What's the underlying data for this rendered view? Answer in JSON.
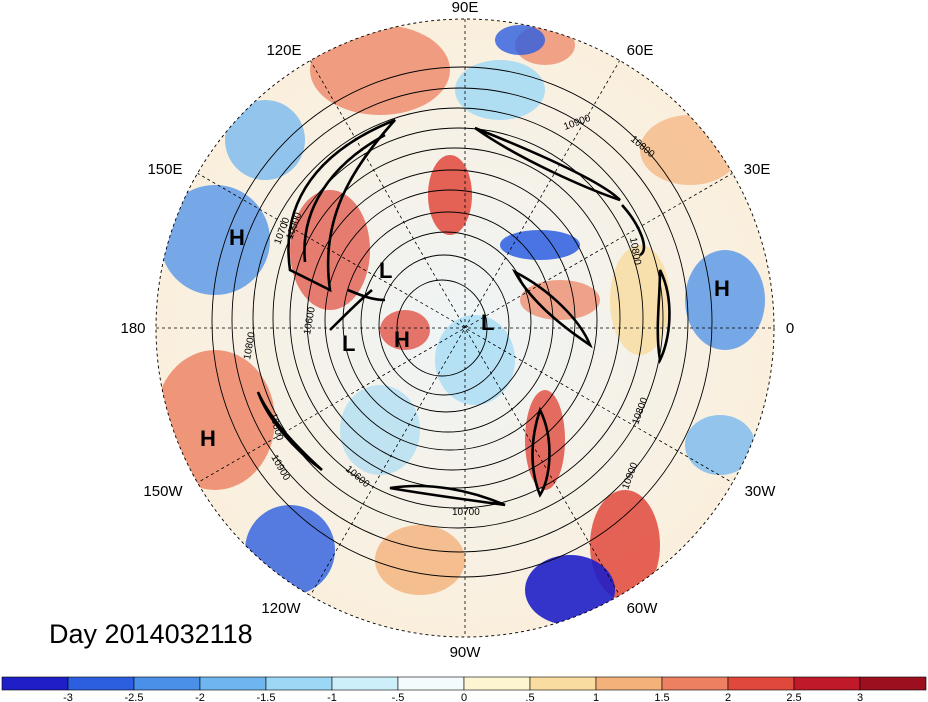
{
  "map": {
    "projection": "north polar stereographic",
    "longitude_labels": [
      "90E",
      "60E",
      "120E",
      "150E",
      "30E",
      "180",
      "0",
      "150W",
      "30W",
      "120W",
      "60W",
      "90W"
    ],
    "contour_labels": [
      "10900",
      "10800",
      "10600",
      "10700",
      "10900",
      "10800",
      "10900",
      "10800",
      "10600",
      "10700",
      "10800",
      "10900",
      "10800",
      "10600",
      "10900"
    ],
    "pressure_centers": [
      {
        "type": "H",
        "region": "north pacific west"
      },
      {
        "type": "L",
        "region": "siberia"
      },
      {
        "type": "L",
        "region": "bering"
      },
      {
        "type": "H",
        "region": "arctic alaska"
      },
      {
        "type": "L",
        "region": "arctic greenland"
      },
      {
        "type": "H",
        "region": "north africa"
      },
      {
        "type": "H",
        "region": "pacific hawaii"
      }
    ]
  },
  "title": {
    "text": "Day 2014032118"
  },
  "colorbar": {
    "tick_labels": [
      "-3",
      "-2.5",
      "-2",
      "-1.5",
      "-1",
      "-.5",
      "0",
      ".5",
      "1",
      "1.5",
      "2",
      "2.5",
      "3"
    ],
    "colors": [
      "#1f1fc8",
      "#2c5ee0",
      "#4a8fe8",
      "#6fb6f0",
      "#9cd8f5",
      "#cdeffa",
      "#f4fbfd",
      "#fdf5d2",
      "#f9dc9f",
      "#f4b27a",
      "#ec8060",
      "#e0483c",
      "#c0192a",
      "#9b0f1e"
    ]
  }
}
